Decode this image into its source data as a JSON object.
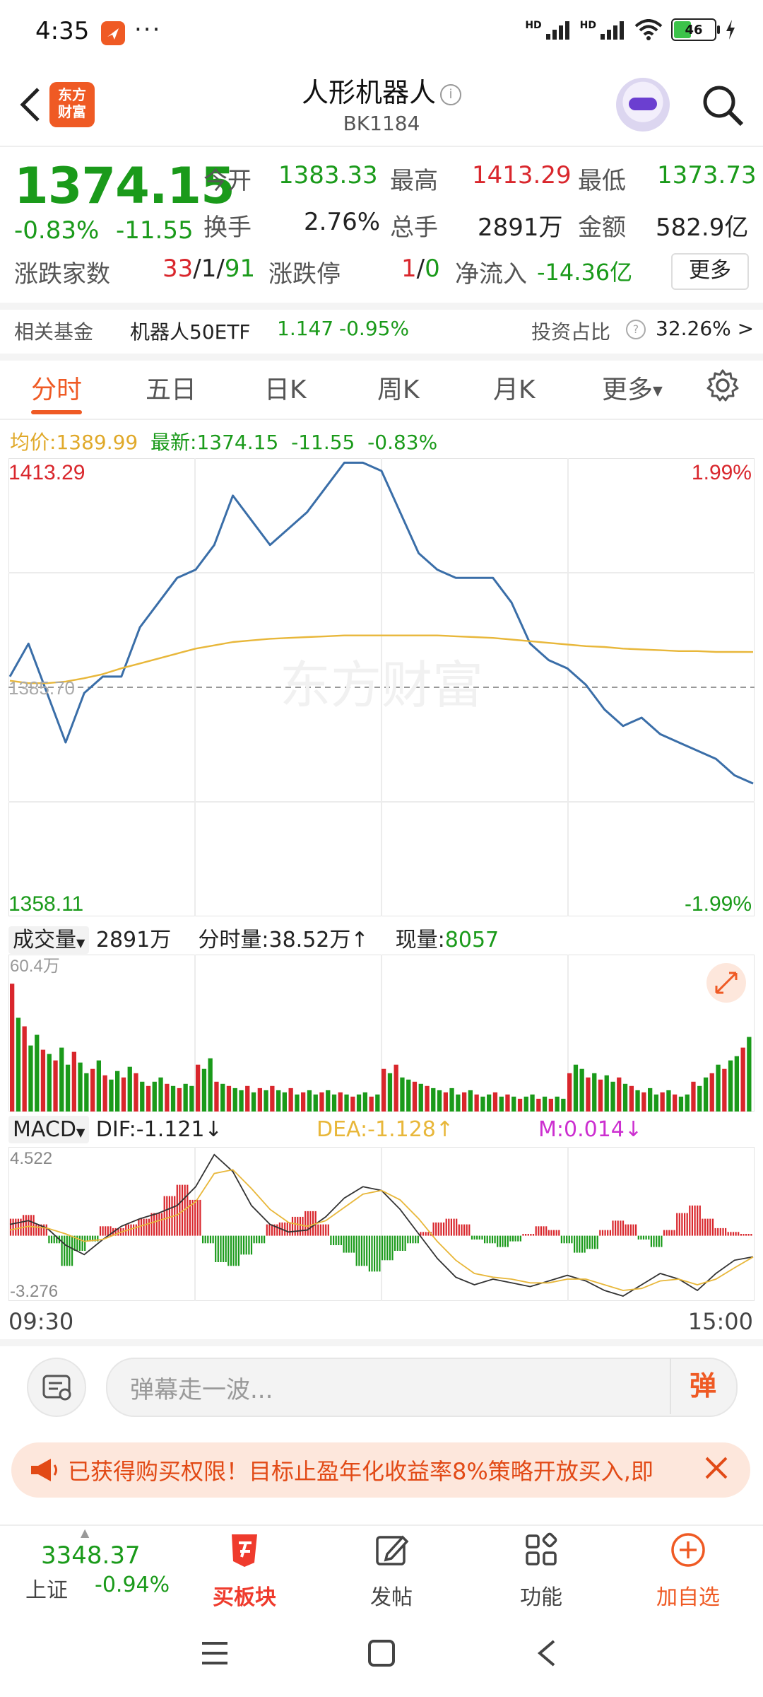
{
  "status_bar": {
    "time": "4:35",
    "dots": "···",
    "hd1": "HD",
    "hd2": "HD",
    "battery": "46",
    "battery_level": 0.46
  },
  "header": {
    "logo_line1": "东方",
    "logo_line2": "财富",
    "title": "人形机器人",
    "code": "BK1184"
  },
  "quote": {
    "price": "1374.15",
    "change_pct": "-0.83%",
    "change": "-11.55",
    "open_label": "今开",
    "open": "1383.33",
    "high_label": "最高",
    "high": "1413.29",
    "low_label": "最低",
    "low": "1373.73",
    "turnover_label": "换手",
    "turnover": "2.76%",
    "volume_label": "总手",
    "volume": "2891万",
    "amount_label": "金额",
    "amount": "582.9亿",
    "breadth_label": "涨跌家数",
    "up": "33",
    "flat": "1",
    "down": "91",
    "limit_label": "涨跌停",
    "limit_up": "1",
    "limit_down": "0",
    "netflow_label": "净流入",
    "netflow": "-14.36亿",
    "more": "更多"
  },
  "fund": {
    "label": "相关基金",
    "name": "机器人50ETF",
    "price": "1.147",
    "change": "-0.95%",
    "invest_label": "投资占比",
    "invest_value": "32.26% >"
  },
  "tabs": {
    "t1": "分时",
    "t2": "五日",
    "t3": "日K",
    "t4": "周K",
    "t5": "月K",
    "t6": "更多"
  },
  "avg": {
    "avg_label": "均价:",
    "avg_value": "1389.99",
    "latest_label": "最新:",
    "latest_value": "1374.15",
    "latest_change": "-11.55",
    "latest_pct": "-0.83%"
  },
  "chart_labels": {
    "top_price": "1413.29",
    "top_pct": "1.99%",
    "bottom_price": "1358.11",
    "bottom_pct": "-1.99%",
    "ref_price": "1385.70",
    "watermark": "东方财富"
  },
  "volume_header": {
    "label": "成交量",
    "total": "2891万",
    "tick_label": "分时量:",
    "tick_value": "38.52万",
    "tick_arrow": "↑",
    "now_label": "现量:",
    "now_value": "8057",
    "axis_max": "60.4万"
  },
  "macd_header": {
    "label": "MACD",
    "dif": "DIF:-1.121↓",
    "dea": "DEA:-1.128↑",
    "m": "M:0.014↓",
    "axis_max": "4.522",
    "axis_min": "-3.276"
  },
  "time_axis": {
    "start": "09:30",
    "end": "15:00"
  },
  "danmaku": {
    "placeholder": "弹幕走一波...",
    "send": "弹"
  },
  "notice": {
    "text": "已获得购买权限！目标止盈年化收益率8%策略开放买入,即"
  },
  "bottom_bar": {
    "index_value": "3348.37",
    "index_name": "上证",
    "index_change": "-0.94%",
    "board": "买板块",
    "post": "发帖",
    "func": "功能",
    "fav": "加自选"
  },
  "colors": {
    "accent": "#ef5a24",
    "up": "#d9262c",
    "down": "#1a9a1a",
    "price_line": "#3a6ea8",
    "avg_line": "#e8b73a"
  },
  "chart_data": [
    {
      "type": "line",
      "title": "",
      "x_range": [
        "09:30",
        "15:00"
      ],
      "ylim": [
        1358.11,
        1413.29
      ],
      "reference": 1385.7,
      "series": [
        {
          "name": "最新",
          "values": [
            1387,
            1391,
            1385,
            1379,
            1385,
            1387,
            1387,
            1393,
            1396,
            1399,
            1400,
            1403,
            1409,
            1406,
            1403,
            1405,
            1407,
            1410,
            1413,
            1413,
            1412,
            1407,
            1402,
            1400,
            1399,
            1399,
            1399,
            1396,
            1391,
            1389,
            1388,
            1386,
            1383,
            1381,
            1382,
            1380,
            1379,
            1378,
            1377,
            1375,
            1374
          ]
        },
        {
          "name": "均价",
          "values": [
            1386.5,
            1386.2,
            1386.2,
            1386.4,
            1386.8,
            1387.3,
            1388.0,
            1388.6,
            1389.2,
            1389.8,
            1390.4,
            1390.8,
            1391.2,
            1391.4,
            1391.6,
            1391.7,
            1391.8,
            1391.9,
            1392.0,
            1392.0,
            1392.0,
            1392.0,
            1392.0,
            1392.0,
            1391.9,
            1391.8,
            1391.7,
            1391.5,
            1391.3,
            1391.1,
            1390.9,
            1390.7,
            1390.6,
            1390.4,
            1390.3,
            1390.2,
            1390.1,
            1390.1,
            1390.0,
            1390.0,
            1389.99
          ]
        }
      ]
    },
    {
      "type": "bar",
      "title": "成交量",
      "ylim": [
        0,
        60.4
      ],
      "values": [
        60,
        44,
        40,
        31,
        36,
        29,
        27,
        24,
        30,
        22,
        28,
        23,
        18,
        20,
        24,
        17,
        15,
        19,
        16,
        21,
        18,
        14,
        12,
        14,
        16,
        13,
        12,
        11,
        13,
        12,
        22,
        20,
        25,
        14,
        13,
        12,
        11,
        10,
        12,
        9,
        11,
        10,
        12,
        10,
        9,
        11,
        8,
        9,
        10,
        8,
        9,
        10,
        8,
        9,
        8,
        7,
        8,
        9,
        7,
        8,
        20,
        18,
        22,
        16,
        15,
        14,
        13,
        12,
        11,
        10,
        9,
        11,
        8,
        9,
        10,
        8,
        7,
        8,
        9,
        7,
        8,
        7,
        6,
        7,
        8,
        6,
        7,
        6,
        7,
        6,
        18,
        22,
        20,
        16,
        18,
        15,
        17,
        14,
        16,
        13,
        12,
        10,
        9,
        11,
        8,
        9,
        10,
        8,
        7,
        8,
        14,
        12,
        16,
        18,
        22,
        20,
        24,
        26,
        30,
        35
      ],
      "up_pattern": [
        1,
        0,
        1,
        0,
        0,
        1,
        0,
        1,
        0,
        0,
        1,
        0,
        0,
        1,
        0,
        1,
        0,
        0,
        1,
        0
      ]
    },
    {
      "type": "bar",
      "title": "MACD",
      "ylim": [
        -3.276,
        4.522
      ],
      "values": [
        0.9,
        1.1,
        0.6,
        -0.4,
        -1.6,
        -0.8,
        -0.3,
        0.5,
        0.4,
        0.6,
        0.9,
        1.2,
        2.1,
        2.7,
        1.9,
        -0.4,
        -1.4,
        -1.6,
        -1.0,
        -0.4,
        0.6,
        0.7,
        1.0,
        1.3,
        0.6,
        -0.5,
        -0.9,
        -1.6,
        -1.9,
        -1.3,
        -0.8,
        -0.4,
        0.2,
        0.7,
        0.9,
        0.6,
        -0.2,
        -0.4,
        -0.6,
        -0.3,
        0.1,
        0.5,
        0.3,
        -0.4,
        -0.9,
        -0.7,
        0.3,
        0.8,
        0.6,
        -0.2,
        -0.6,
        0.3,
        1.2,
        1.6,
        0.9,
        0.4,
        0.2,
        0.1
      ],
      "series": [
        {
          "name": "DIF",
          "values": [
            0.6,
            0.8,
            0.4,
            -0.5,
            -1.0,
            -0.2,
            0.5,
            0.9,
            1.2,
            1.6,
            2.6,
            4.3,
            3.4,
            1.6,
            0.6,
            0.2,
            0.3,
            1.0,
            2.0,
            2.6,
            2.4,
            1.4,
            0.1,
            -1.2,
            -2.2,
            -2.6,
            -2.3,
            -2.5,
            -2.7,
            -2.4,
            -2.1,
            -2.4,
            -2.9,
            -3.2,
            -2.6,
            -2.0,
            -2.3,
            -2.9,
            -2.0,
            -1.3,
            -1.121
          ]
        },
        {
          "name": "DEA",
          "values": [
            0.3,
            0.5,
            0.4,
            0.1,
            -0.3,
            -0.2,
            0.2,
            0.5,
            0.8,
            1.1,
            1.8,
            3.3,
            3.5,
            2.5,
            1.4,
            0.7,
            0.5,
            0.8,
            1.5,
            2.2,
            2.4,
            1.9,
            0.9,
            -0.3,
            -1.3,
            -2.0,
            -2.2,
            -2.3,
            -2.5,
            -2.5,
            -2.3,
            -2.3,
            -2.6,
            -2.9,
            -2.8,
            -2.4,
            -2.3,
            -2.6,
            -2.3,
            -1.7,
            -1.128
          ]
        }
      ]
    }
  ]
}
